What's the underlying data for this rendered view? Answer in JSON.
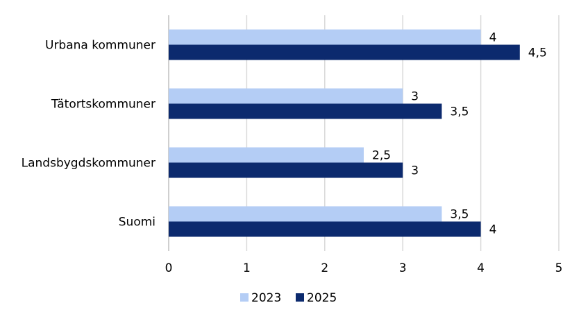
{
  "chart_data": {
    "type": "bar",
    "orientation": "horizontal",
    "categories": [
      "Urbana kommuner",
      "Tätortskommuner",
      "Landsbygdskommuner",
      "Suomi"
    ],
    "series": [
      {
        "name": "2023",
        "values": [
          4,
          3,
          2.5,
          3.5
        ],
        "labels": [
          "4",
          "3",
          "2,5",
          "3,5"
        ],
        "color": "#b4cdf5"
      },
      {
        "name": "2025",
        "values": [
          4.5,
          3.5,
          3,
          4
        ],
        "labels": [
          "4,5",
          "3,5",
          "3",
          "4"
        ],
        "color": "#0c2a6e"
      }
    ],
    "xlim": [
      0,
      5
    ],
    "xticks": [
      0,
      1,
      2,
      3,
      4,
      5
    ],
    "xtick_labels": [
      "0",
      "1",
      "2",
      "3",
      "4",
      "5"
    ],
    "grid": "vertical",
    "legend": "bottom",
    "title": "",
    "xlabel": "",
    "ylabel": ""
  }
}
